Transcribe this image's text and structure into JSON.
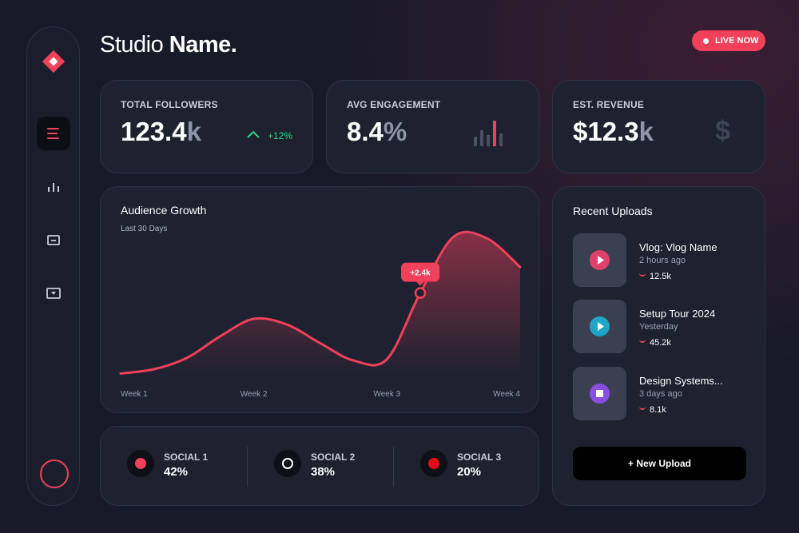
{
  "header": {
    "brand_light": "Studio",
    "brand_bold": "Name.",
    "live_badge": "LIVE NOW"
  },
  "stats": [
    {
      "label": "TOTAL FOLLOWERS",
      "value": "123.4",
      "unit": "k",
      "change": "+12%"
    },
    {
      "label": "AVG ENGAGEMENT",
      "value": "8.4",
      "unit": "%"
    },
    {
      "label": "EST. REVENUE",
      "value": "$12.3",
      "unit": "k",
      "icon": "$"
    }
  ],
  "chart_data": {
    "type": "line",
    "title": "Audience Growth",
    "subtitle": "Last 30 Days",
    "annotation": "+2.4k",
    "color": "#f0405a",
    "x": [
      1,
      1.25,
      1.5,
      1.75,
      2,
      2.25,
      2.5,
      2.75,
      3,
      3.25,
      3.5,
      3.75,
      4
    ],
    "values": [
      2,
      5,
      13,
      28,
      40,
      36,
      23,
      11,
      12,
      58,
      97,
      96,
      76
    ],
    "xlim": [
      1,
      4
    ],
    "ylim": [
      0,
      100
    ],
    "xticks": [
      {
        "value": 1,
        "label": "Week 1"
      },
      {
        "value": 2,
        "label": "Week 2"
      },
      {
        "value": 3,
        "label": "Week 3"
      },
      {
        "value": 4,
        "label": "Week 4"
      }
    ]
  },
  "recent_uploads": {
    "title": "Recent Uploads",
    "items": [
      {
        "title": "Vlog: Vlog Name",
        "time": "2 hours ago",
        "views": "12.5k"
      },
      {
        "title": "Setup Tour 2024",
        "time": "Yesterday",
        "views": "45.2k"
      },
      {
        "title": "Design Systems...",
        "time": "3 days ago",
        "views": "8.1k"
      }
    ],
    "button": "+ New Upload"
  },
  "socials": [
    {
      "name": "SOCIAL 1",
      "share": "42%"
    },
    {
      "name": "SOCIAL 2",
      "share": "38%"
    },
    {
      "name": "SOCIAL 3",
      "share": "20%"
    }
  ]
}
